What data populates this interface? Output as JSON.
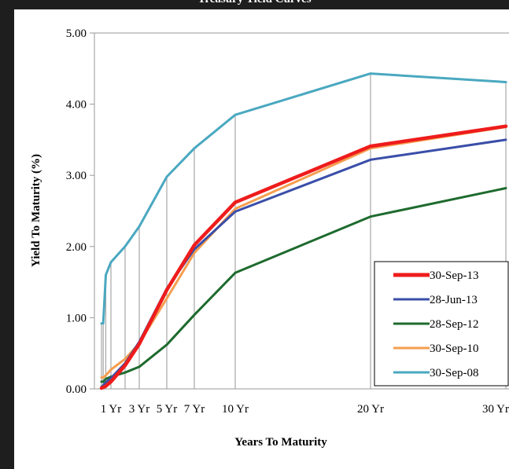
{
  "chart_data": {
    "type": "line",
    "title": "Treasury Yield Curves",
    "xlabel": "Years To Maturity",
    "ylabel": "Yield To Maturity (%)",
    "ylim": [
      0,
      5
    ],
    "yticks": [
      "0.00",
      "1.00",
      "2.00",
      "3.00",
      "4.00",
      "5.00"
    ],
    "xticks": [
      "1 Yr",
      "3 Yr",
      "5 Yr",
      "7 Yr",
      "10 Yr",
      "20 Yr",
      "30 Yr"
    ],
    "x": [
      0.083,
      0.25,
      0.5,
      1,
      2,
      3,
      5,
      7,
      10,
      20,
      30
    ],
    "grid": "vertical lines at maturities",
    "legend_position": "bottom-right",
    "series": [
      {
        "name": "30-Sep-13",
        "color": "#ee1c1c",
        "values": [
          0.01,
          0.02,
          0.04,
          0.1,
          0.33,
          0.63,
          1.39,
          2.02,
          2.62,
          3.41,
          3.69
        ]
      },
      {
        "name": "28-Jun-13",
        "color": "#3a4ea8",
        "values": [
          0.03,
          0.05,
          0.09,
          0.15,
          0.36,
          0.66,
          1.41,
          1.96,
          2.49,
          3.22,
          3.5
        ]
      },
      {
        "name": "28-Sep-12",
        "color": "#1e6b2e",
        "values": [
          0.1,
          0.1,
          0.14,
          0.17,
          0.23,
          0.31,
          0.62,
          1.04,
          1.63,
          2.42,
          2.82
        ]
      },
      {
        "name": "30-Sep-10",
        "color": "#f59e4f",
        "values": [
          0.16,
          0.16,
          0.19,
          0.27,
          0.42,
          0.64,
          1.27,
          1.91,
          2.53,
          3.38,
          3.68
        ]
      },
      {
        "name": "30-Sep-08",
        "color": "#4aa8c0",
        "values": [
          0.92,
          0.92,
          1.6,
          1.78,
          2.0,
          2.28,
          2.98,
          3.38,
          3.85,
          4.43,
          4.31
        ]
      }
    ]
  }
}
